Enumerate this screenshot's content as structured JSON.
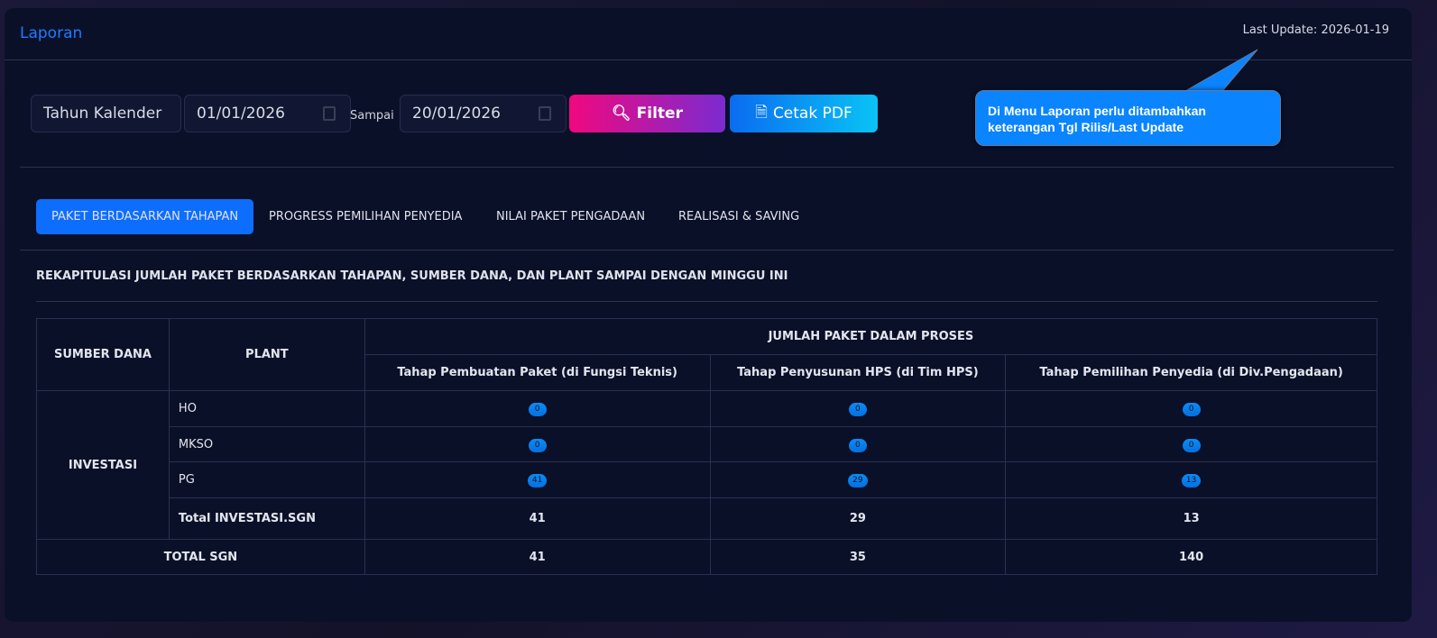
{
  "header": {
    "title": "Laporan",
    "last_update": "Last Update: 2026-01-19"
  },
  "filter": {
    "period_type": "Tahun Kalender",
    "date_from": "01/01/2026",
    "separator": "Sampai",
    "date_to": "20/01/2026",
    "filter_label": "Filter",
    "pdf_label": "Cetak PDF"
  },
  "callout": {
    "line1": "Di Menu Laporan perlu ditambahkan",
    "line2": "keterangan Tgl Rilis/Last Update",
    "color": "#0a84ff"
  },
  "tabs": [
    {
      "label": "PAKET BERDASARKAN TAHAPAN",
      "active": true
    },
    {
      "label": "PROGRESS PEMILIHAN PENYEDIA"
    },
    {
      "label": "NILAI PAKET PENGADAAN"
    },
    {
      "label": "REALISASI & SAVING"
    }
  ],
  "section_title": "REKAPITULASI JUMLAH PAKET BERDASARKAN TAHAPAN, SUMBER DANA, DAN PLANT SAMPAI DENGAN MINGGU INI",
  "table": {
    "h_sumber": "SUMBER DANA",
    "h_plant": "PLANT",
    "h_group": "JUMLAH PAKET DALAM PROSES",
    "cols": [
      "Tahap Pembuatan Paket (di Fungsi Teknis)",
      "Tahap Penyusunan HPS (di Tim HPS)",
      "Tahap Pemilihan Penyedia (di Div.Pengadaan)"
    ],
    "group": "INVESTASI",
    "rows": [
      {
        "plant": "HO",
        "v": [
          "0",
          "0",
          "0"
        ]
      },
      {
        "plant": "MKSO",
        "v": [
          "0",
          "0",
          "0"
        ]
      },
      {
        "plant": "PG",
        "v": [
          "41",
          "29",
          "13"
        ]
      }
    ],
    "subtotal": {
      "label": "Total INVESTASI.SGN",
      "v": [
        "41",
        "29",
        "13"
      ]
    },
    "total": {
      "label": "TOTAL SGN",
      "v": [
        "41",
        "35",
        "140"
      ]
    }
  }
}
